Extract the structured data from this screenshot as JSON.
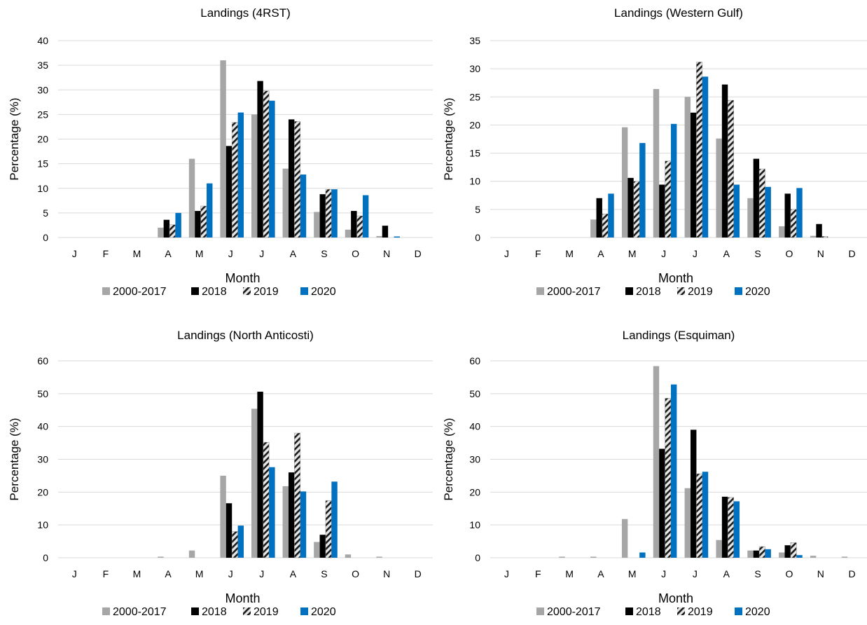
{
  "chart_data": [
    {
      "type": "bar",
      "title": "Landings (4RST)",
      "xlabel": "Month",
      "ylabel": "Percentage (%)",
      "ylim": [
        0,
        40
      ],
      "yticks": [
        0,
        5,
        10,
        15,
        20,
        25,
        30,
        35,
        40
      ],
      "grid": true,
      "legend": "bottom",
      "categories": [
        "J",
        "F",
        "M",
        "A",
        "M",
        "J",
        "J",
        "A",
        "S",
        "O",
        "N",
        "D"
      ],
      "series": [
        {
          "name": "2000-2017",
          "values": [
            0,
            0,
            0,
            2,
            16,
            36,
            25,
            14,
            5.2,
            1.6,
            0.3,
            0
          ]
        },
        {
          "name": "2018",
          "values": [
            0,
            0,
            0,
            3.6,
            5.4,
            18.6,
            31.8,
            24,
            8.8,
            5.4,
            2.4,
            0
          ]
        },
        {
          "name": "2019",
          "values": [
            0,
            0,
            0,
            2.6,
            6.4,
            23.4,
            29.8,
            23.6,
            9.8,
            4.4,
            0,
            0
          ]
        },
        {
          "name": "2020",
          "values": [
            0,
            0,
            0,
            5,
            11,
            25.4,
            27.8,
            12.8,
            9.8,
            8.6,
            0.2,
            0
          ]
        }
      ]
    },
    {
      "type": "bar",
      "title": "Landings (Western Gulf)",
      "xlabel": "Month",
      "ylabel": "Percentage (%)",
      "ylim": [
        0,
        35
      ],
      "yticks": [
        0,
        5,
        10,
        15,
        20,
        25,
        30,
        35
      ],
      "grid": true,
      "legend": "bottom",
      "categories": [
        "J",
        "F",
        "M",
        "A",
        "M",
        "J",
        "J",
        "A",
        "S",
        "O",
        "N",
        "D"
      ],
      "series": [
        {
          "name": "2000-2017",
          "values": [
            0,
            0,
            0,
            3.2,
            19.6,
            26.4,
            25,
            17.6,
            7,
            2,
            0.3,
            0
          ]
        },
        {
          "name": "2018",
          "values": [
            0,
            0,
            0,
            7,
            10.6,
            9.4,
            22.2,
            27.2,
            14,
            7.8,
            2.4,
            0
          ]
        },
        {
          "name": "2019",
          "values": [
            0,
            0,
            0,
            4.2,
            10,
            13.6,
            31.2,
            24.4,
            12.2,
            5,
            0.2,
            0
          ]
        },
        {
          "name": "2020",
          "values": [
            0,
            0,
            0,
            7.8,
            16.8,
            20.2,
            28.6,
            9.4,
            9,
            8.8,
            0,
            0
          ]
        }
      ]
    },
    {
      "type": "bar",
      "title": "Landings (North Anticosti)",
      "xlabel": "Month",
      "ylabel": "Percentage (%)",
      "ylim": [
        0,
        60
      ],
      "yticks": [
        0,
        10,
        20,
        30,
        40,
        50,
        60
      ],
      "grid": true,
      "legend": "bottom",
      "categories": [
        "J",
        "F",
        "M",
        "A",
        "M",
        "J",
        "J",
        "A",
        "S",
        "O",
        "N",
        "D"
      ],
      "series": [
        {
          "name": "2000-2017",
          "values": [
            0,
            0,
            0,
            0.3,
            2.2,
            25,
            45.4,
            21.8,
            4.8,
            1,
            0.2,
            0
          ]
        },
        {
          "name": "2018",
          "values": [
            0,
            0,
            0,
            0,
            0,
            16.6,
            50.6,
            26,
            7,
            0,
            0,
            0
          ]
        },
        {
          "name": "2019",
          "values": [
            0,
            0,
            0,
            0,
            0,
            8,
            35.2,
            38,
            17.4,
            0,
            0,
            0
          ]
        },
        {
          "name": "2020",
          "values": [
            0,
            0,
            0,
            0,
            0,
            9.8,
            27.6,
            20.2,
            23.2,
            0,
            0,
            0
          ]
        }
      ]
    },
    {
      "type": "bar",
      "title": "Landings (Esquiman)",
      "xlabel": "Month",
      "ylabel": "Percentage (%)",
      "ylim": [
        0,
        60
      ],
      "yticks": [
        0,
        10,
        20,
        30,
        40,
        50,
        60
      ],
      "grid": true,
      "legend": "bottom",
      "categories": [
        "J",
        "F",
        "M",
        "A",
        "M",
        "J",
        "J",
        "A",
        "S",
        "O",
        "N",
        "D"
      ],
      "series": [
        {
          "name": "2000-2017",
          "values": [
            0,
            0,
            0.2,
            0.3,
            11.8,
            58.4,
            21.2,
            5.4,
            2.2,
            1.6,
            0.6,
            0.2
          ]
        },
        {
          "name": "2018",
          "values": [
            0,
            0,
            0,
            0,
            0,
            33.2,
            39,
            18.6,
            2.2,
            3.8,
            0,
            0
          ]
        },
        {
          "name": "2019",
          "values": [
            0,
            0,
            0,
            0,
            0,
            48.6,
            25.6,
            18.4,
            3.4,
            4.6,
            0,
            0
          ]
        },
        {
          "name": "2020",
          "values": [
            0,
            0,
            0,
            0,
            1.6,
            52.8,
            26.2,
            17.2,
            2.6,
            0.8,
            0,
            0
          ]
        }
      ]
    }
  ],
  "colors": {
    "series": [
      "#a6a6a6",
      "#000000",
      "#d9d9d9",
      "#0070c0"
    ],
    "hatch_stripe": "#1a1a1a",
    "grid": "#d9d9d9",
    "axis": "#d9d9d9"
  }
}
